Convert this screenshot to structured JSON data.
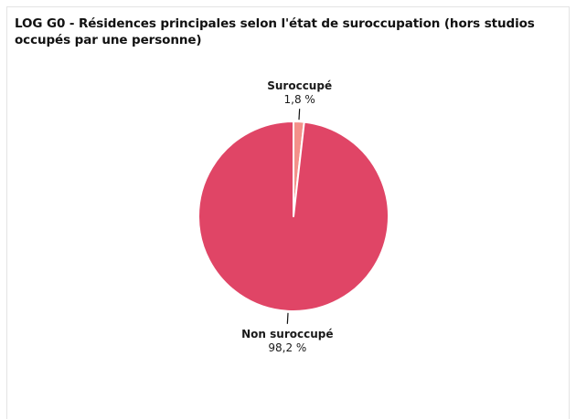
{
  "title": "LOG G0 - Résidences principales selon l'état de suroccupation (hors studios occupés par une personne)",
  "colors": {
    "suroccupe": "#f4908a",
    "non_suroccupe": "#e04566"
  },
  "chart_data": {
    "type": "pie",
    "title": "LOG G0 - Résidences principales selon l'état de suroccupation (hors studios occupés par une personne)",
    "slices": [
      {
        "label": "Suroccupé",
        "value": 1.8,
        "value_label": "1,8 %",
        "color": "#f4908a"
      },
      {
        "label": "Non suroccupé",
        "value": 98.2,
        "value_label": "98,2 %",
        "color": "#e04566"
      }
    ]
  }
}
